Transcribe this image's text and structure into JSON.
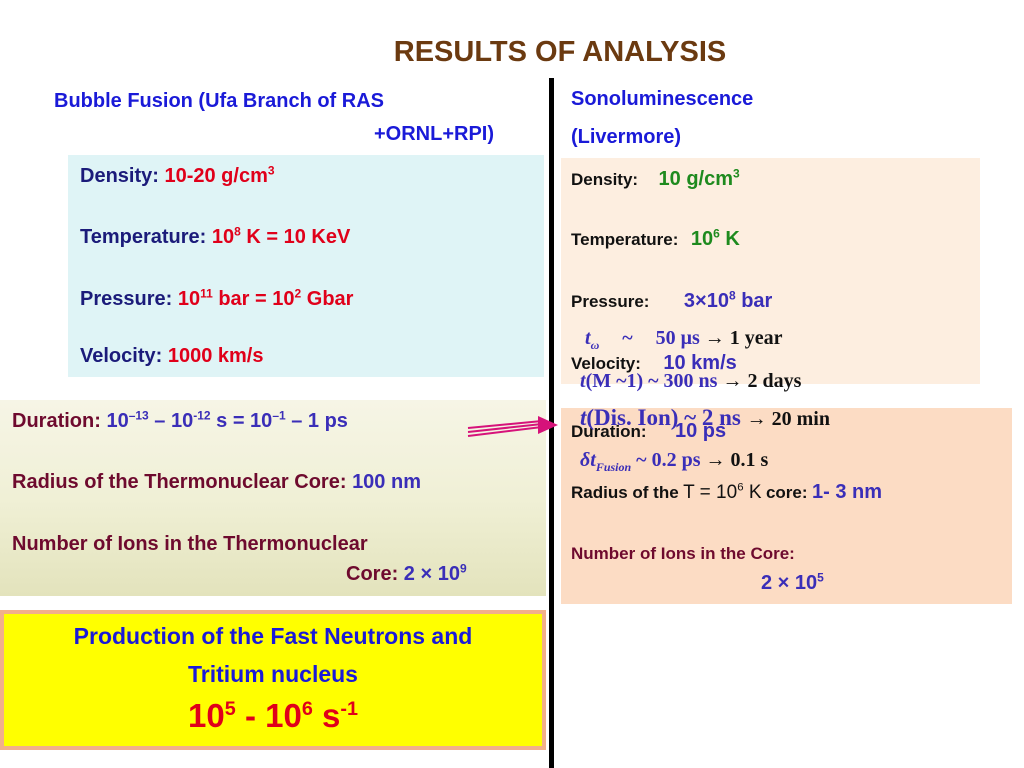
{
  "title": "RESULTS OF ANALYSIS",
  "left": {
    "heading_line1": "Bubble Fusion (Ufa Branch of RAS",
    "heading_line2": "+ORNL+RPI)",
    "density_label": "Density:",
    "density_value": "10-20 g/cm",
    "density_sup": "3",
    "temperature_label": "Temperature:",
    "temperature_base": "10",
    "temperature_sup": "8",
    "temperature_rest": "K = 10  KeV",
    "pressure_label": "Pressure:",
    "pressure_base": "10",
    "pressure_sup": "11",
    "pressure_mid": "bar = 10",
    "pressure_sup2": "2",
    "pressure_rest": "Gbar",
    "velocity_label": "Velocity:",
    "velocity_value": "1000 km/s",
    "duration_label": "Duration:",
    "duration_a": "10",
    "duration_a_sup": "–13",
    "duration_b": "– 10",
    "duration_b_sup": "-12",
    "duration_c": "s = 10",
    "duration_c_sup": "–1",
    "duration_d": "– 1 ps",
    "radius_label": "Radius of the Thermonuclear Core:",
    "radius_value": "100 nm",
    "ions_label_line1": "Number of Ions in the Thermonuclear",
    "ions_label_line2": "Core:",
    "ions_value": "2 × 10",
    "ions_sup": "9",
    "production_line1": "Production of the Fast Neutrons and",
    "production_line2": "Tritium nucleus",
    "production_rate_a": "10",
    "production_rate_a_sup": "5",
    "production_rate_b": "- 10",
    "production_rate_b_sup": "6",
    "production_rate_c": "s",
    "production_rate_c_sup": "-1"
  },
  "right": {
    "heading_line1": "Sonoluminescence",
    "heading_line2": "(Livermore)",
    "density_label": "Density:",
    "density_value": "10 g/cm",
    "density_sup": "3",
    "temperature_label": "Temperature:",
    "temperature_base": "10",
    "temperature_sup": "6",
    "temperature_rest": "K",
    "pressure_label": "Pressure:",
    "pressure_base": "3×10",
    "pressure_sup": "8",
    "pressure_rest": "bar",
    "velocity_label": "Velocity:",
    "velocity_value": "10 km/s",
    "duration_label": "Duration:",
    "duration_value": "10 ps",
    "radius_label": "Radius of the",
    "radius_mid": "T = 10",
    "radius_mid_sup": "6",
    "radius_mid2": "K",
    "radius_core": "core:",
    "radius_value": "1- 3 nm",
    "ions_label": "Number of Ions in the Core:",
    "ions_value": "2 × 10",
    "ions_sup": "5"
  },
  "overlay": {
    "t_omega_symbol": "t",
    "t_omega_sub": "ω",
    "t_omega_tilde": "~",
    "t_omega_value": "50 μs",
    "t_omega_arrow": "→ 1 year",
    "t_m_symbol": "t",
    "t_m_value": "(M ~1) ~ 300 ns",
    "t_m_arrow": "→ 2 days",
    "t_dis_symbol": "t",
    "t_dis_value": "(Dis. Ion) ~ 2 ns",
    "t_dis_arrow": "→ 20 min",
    "dt_symbol": "δt",
    "dt_sub": "Fusion",
    "dt_value": "~ 0.2 ps",
    "dt_arrow": "→ 0.1 s"
  },
  "colors": {
    "title": "#6b3a10",
    "heading_blue": "#1a1ad8",
    "label_navy": "#1b1b7a",
    "value_red": "#e0001a",
    "value_green": "#1e8a1e",
    "label_maroon": "#6e0a2e",
    "arrow_magenta": "#d6127a"
  }
}
